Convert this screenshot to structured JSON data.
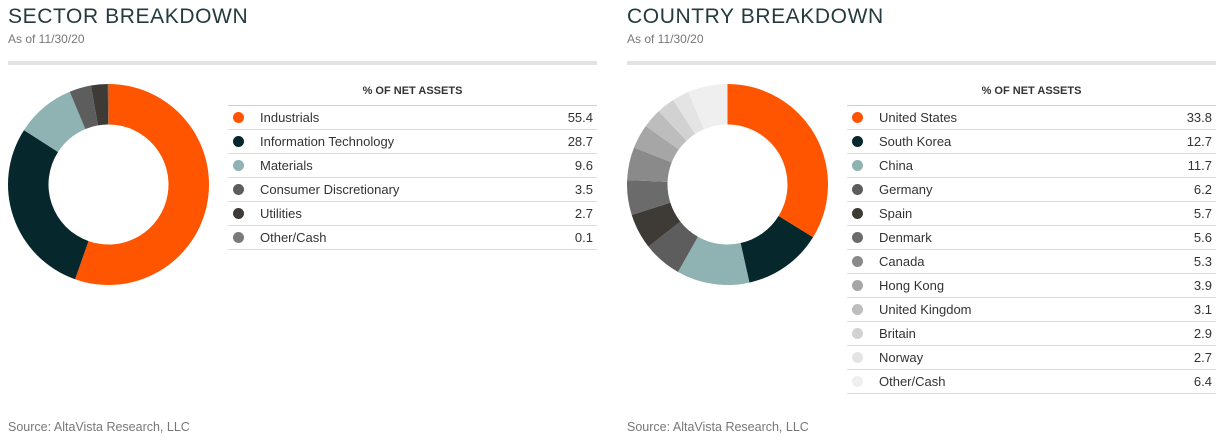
{
  "sector": {
    "title": "SECTOR BREAKDOWN",
    "as_of": "As of 11/30/20",
    "source": "Source: AltaVista Research, LLC"
  },
  "country": {
    "title": "COUNTRY BREAKDOWN",
    "as_of": "As of 11/30/20",
    "source": "Source: AltaVista Research, LLC"
  },
  "chart_data": [
    {
      "id": "sector",
      "type": "pie",
      "title": "SECTOR BREAKDOWN",
      "column_header": "% OF NET ASSETS",
      "categories": [
        "Industrials",
        "Information Technology",
        "Materials",
        "Consumer Discretionary",
        "Utilities",
        "Other/Cash"
      ],
      "values": [
        55.4,
        28.7,
        9.6,
        3.5,
        2.7,
        0.1
      ],
      "value_labels": [
        "55.4",
        "28.7",
        "9.6",
        "3.5",
        "2.7",
        "0.1"
      ],
      "colors": [
        "#ff5500",
        "#06282c",
        "#8fb2b2",
        "#5d5d5d",
        "#3e3a36",
        "#7a7a7a"
      ]
    },
    {
      "id": "country",
      "type": "pie",
      "title": "COUNTRY BREAKDOWN",
      "column_header": "% OF NET ASSETS",
      "categories": [
        "United States",
        "South Korea",
        "China",
        "Germany",
        "Spain",
        "Denmark",
        "Canada",
        "Hong Kong",
        "United Kingdom",
        "Britain",
        "Norway",
        "Other/Cash"
      ],
      "values": [
        33.8,
        12.7,
        11.7,
        6.2,
        5.7,
        5.6,
        5.3,
        3.9,
        3.1,
        2.9,
        2.7,
        6.4
      ],
      "value_labels": [
        "33.8",
        "12.7",
        "11.7",
        "6.2",
        "5.7",
        "5.6",
        "5.3",
        "3.9",
        "3.1",
        "2.9",
        "2.7",
        "6.4"
      ],
      "colors": [
        "#ff5500",
        "#06282c",
        "#8fb2b2",
        "#5d5d5d",
        "#3e3a36",
        "#6b6b6b",
        "#8a8a8a",
        "#a6a6a6",
        "#bdbdbd",
        "#d2d2d2",
        "#e4e4e4",
        "#efefef"
      ]
    }
  ]
}
